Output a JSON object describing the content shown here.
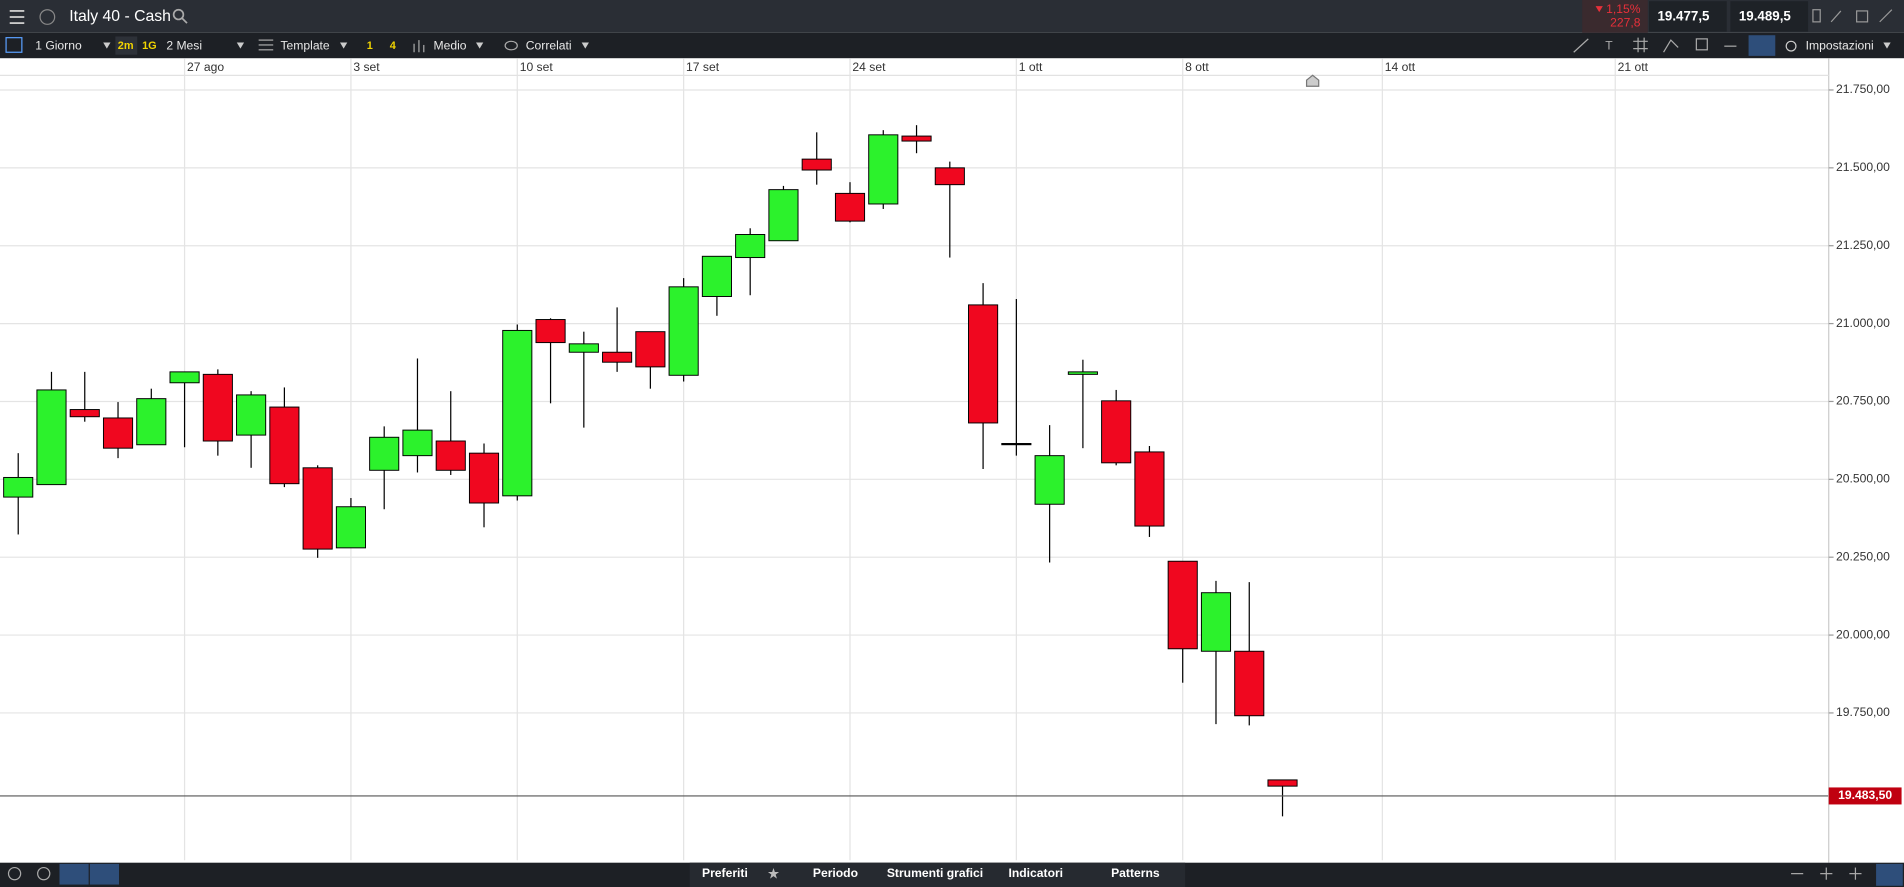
{
  "header": {
    "title": "Italy 40 - Cash",
    "change_pct": "1,15%",
    "change_pts": "227,8",
    "bid": "19.477,5",
    "ask": "19.489,5"
  },
  "toolbar": {
    "interval": "1 Giorno",
    "quick_1": "2m",
    "quick_2": "1G",
    "range": "2 Mesi",
    "template": "Template",
    "layout_1": "1",
    "layout_2": "4",
    "style": "Medio",
    "related": "Correlati",
    "settings": "Impostazioni"
  },
  "chart_data": {
    "type": "candlestick",
    "categories": [
      null,
      null,
      null,
      null,
      null,
      "27 ago",
      null,
      null,
      null,
      null,
      "3 set",
      null,
      null,
      null,
      null,
      "10 set",
      null,
      null,
      null,
      null,
      "17 set",
      null,
      null,
      null,
      null,
      "24 set",
      null,
      null,
      null,
      null,
      "1 ott",
      null,
      null,
      null,
      null,
      "8 ott",
      null,
      null,
      null,
      null,
      null,
      "14 ott",
      null,
      null,
      null,
      null,
      null,
      null,
      "21 ott",
      null,
      null,
      null,
      null,
      null,
      null
    ],
    "open": [
      20443,
      20483,
      20724,
      20697,
      20611,
      20810,
      20837,
      20642,
      20732,
      20537,
      20280,
      20529,
      20576,
      20623,
      20584,
      20447,
      21013,
      20908,
      20908,
      20974,
      20834,
      21087,
      21212,
      21266,
      21528,
      21418,
      21384,
      21602,
      21500,
      21060,
      20615,
      20420,
      20837,
      20752,
      20588,
      20237,
      19948,
      19948,
      19535,
      null,
      null,
      null,
      null,
      null,
      null,
      null,
      null,
      null,
      null,
      null,
      null,
      null,
      null,
      null,
      null
    ],
    "high": [
      20584,
      20845,
      20845,
      20748,
      20791,
      20845,
      20853,
      20783,
      20795,
      20545,
      20440,
      20670,
      20888,
      20783,
      20615,
      20997,
      21017,
      20974,
      21052,
      20974,
      21146,
      21216,
      21306,
      21442,
      21614,
      21454,
      21621,
      21637,
      21520,
      21130,
      21079,
      20674,
      20884,
      20787,
      20607,
      20237,
      20174,
      20170,
      19535,
      null,
      null,
      null,
      null,
      null,
      null,
      null,
      null,
      null,
      null,
      null,
      null,
      null,
      null,
      null,
      null
    ],
    "low": [
      20323,
      20483,
      20685,
      20568,
      20611,
      20603,
      20576,
      20537,
      20475,
      20248,
      20280,
      20404,
      20522,
      20514,
      20346,
      20432,
      20744,
      20666,
      20845,
      20791,
      20814,
      21025,
      21091,
      21266,
      21446,
      21325,
      21368,
      21547,
      21212,
      20533,
      20576,
      20233,
      20600,
      20545,
      20315,
      19847,
      19714,
      19710,
      19418,
      null,
      null,
      null,
      null,
      null,
      null,
      null,
      null,
      null,
      null,
      null,
      null,
      null,
      null,
      null,
      null
    ],
    "close": [
      20506,
      20787,
      20701,
      20600,
      20759,
      20845,
      20623,
      20771,
      20486,
      20276,
      20412,
      20635,
      20658,
      20529,
      20424,
      20978,
      20939,
      20935,
      20876,
      20861,
      21118,
      21216,
      21286,
      21430,
      21493,
      21329,
      21606,
      21586,
      21446,
      20681,
      20615,
      20576,
      20845,
      20553,
      20350,
      19956,
      20136,
      19741,
      19515,
      null,
      null,
      null,
      null,
      null,
      null,
      null,
      null,
      null,
      null,
      null,
      null,
      null,
      null,
      null,
      null
    ],
    "up_color": "#2cf22c",
    "down_color": "#f0071f",
    "ylim": [
      19277,
      21797
    ],
    "yticks": [
      {
        "value": 19750,
        "label": "19.750,00"
      },
      {
        "value": 20000,
        "label": "20.000,00"
      },
      {
        "value": 20250,
        "label": "20.250,00"
      },
      {
        "value": 20500,
        "label": "20.500,00"
      },
      {
        "value": 20750,
        "label": "20.750,00"
      },
      {
        "value": 21000,
        "label": "21.000,00"
      },
      {
        "value": 21250,
        "label": "21.250,00"
      },
      {
        "value": 21500,
        "label": "21.500,00"
      },
      {
        "value": 21750,
        "label": "21.750,00"
      }
    ],
    "current_price": {
      "value": 19483.5,
      "label": "19.483,50"
    },
    "grid": true
  },
  "footer": {
    "tabs": [
      "Preferiti",
      "Periodo",
      "Strumenti grafici",
      "Indicatori",
      "Patterns"
    ]
  }
}
